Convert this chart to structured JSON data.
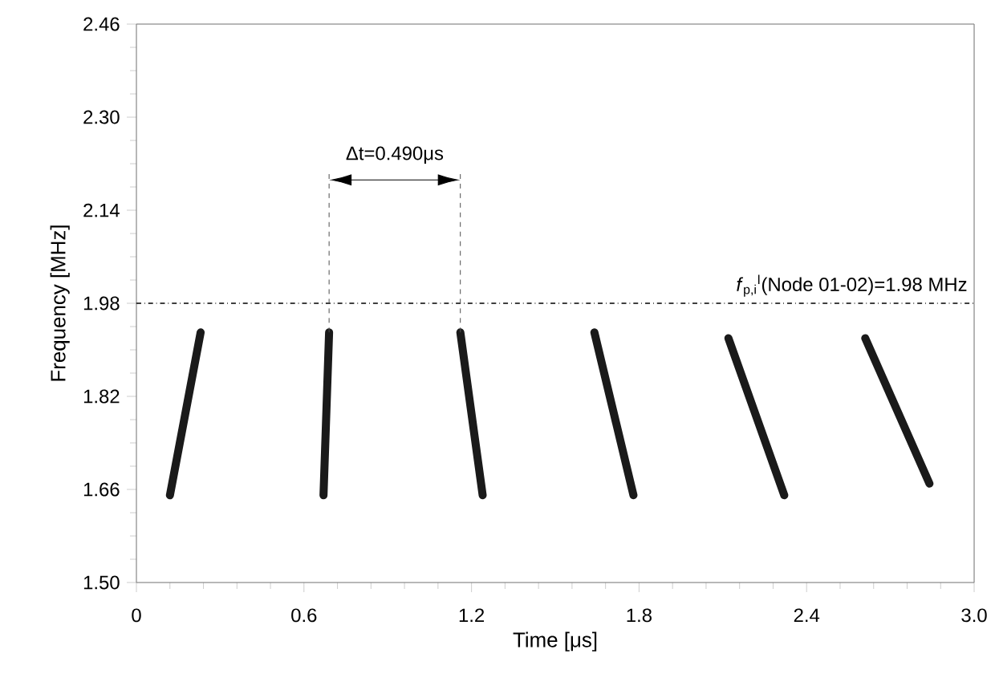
{
  "chart_data": {
    "type": "line",
    "xlabel": "Time [μs]",
    "ylabel": "Frequency [MHz]",
    "xlim": [
      0,
      3.0
    ],
    "ylim": [
      1.5,
      2.46
    ],
    "xticks": [
      0,
      0.6,
      1.2,
      1.8,
      2.4,
      {
        "value": 3.0,
        "label": "3.0"
      }
    ],
    "yticks": [
      {
        "value": 1.5,
        "label": "1.50"
      },
      1.66,
      1.82,
      1.98,
      2.14,
      {
        "value": 2.3,
        "label": "2.30"
      },
      2.46
    ],
    "series": [
      {
        "color": "#1a1a1a",
        "x": [
          0.12,
          0.23
        ],
        "values": [
          1.65,
          1.93
        ]
      },
      {
        "color": "#1a1a1a",
        "x": [
          0.67,
          0.69
        ],
        "values": [
          1.65,
          1.93
        ]
      },
      {
        "color": "#1a1a1a",
        "x": [
          1.24,
          1.16
        ],
        "values": [
          1.65,
          1.93
        ]
      },
      {
        "color": "#1a1a1a",
        "x": [
          1.78,
          1.64
        ],
        "values": [
          1.65,
          1.93
        ]
      },
      {
        "color": "#1a1a1a",
        "x": [
          2.32,
          2.12
        ],
        "values": [
          1.65,
          1.92
        ]
      },
      {
        "color": "#1a1a1a",
        "x": [
          2.84,
          2.61
        ],
        "values": [
          1.67,
          1.92
        ]
      }
    ],
    "ref_lines": [
      {
        "axis": "y",
        "value": 1.98,
        "label": "*f*$_{p,i}$$^{l}$(Node 01-02)=1.98 MHz",
        "line_style": "dashdot",
        "color": "#000000"
      }
    ],
    "annotations": [
      {
        "text": "Δt=0.490μs",
        "x": 0.69,
        "y": 1.93
      }
    ],
    "marker": "none",
    "line_style": "solid",
    "grid": false
  }
}
